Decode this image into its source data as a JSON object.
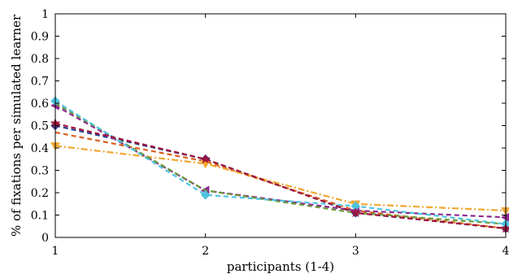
{
  "chart_data": {
    "type": "line",
    "title": "",
    "xlabel": "participants  (1-4)",
    "ylabel": "% of fixations per simulated learner",
    "x": [
      1,
      2,
      3,
      4
    ],
    "xlim": [
      1,
      4
    ],
    "ylim": [
      0,
      1
    ],
    "xticks": [
      "1",
      "2",
      "3",
      "4"
    ],
    "yticks": [
      "0",
      "0.1",
      "0.2",
      "0.3",
      "0.4",
      "0.5",
      "0.6",
      "0.7",
      "0.8",
      "0.9",
      "1"
    ],
    "grid": false,
    "legend": "none",
    "series": [
      {
        "values": [
          0.5,
          0.35,
          0.11,
          0.04
        ],
        "color": "#2e3d8f",
        "marker": "diamond",
        "dash": "dashed"
      },
      {
        "values": [
          0.47,
          0.34,
          0.12,
          0.04
        ],
        "color": "#d95f1e",
        "marker": "none",
        "dash": "dashed"
      },
      {
        "values": [
          0.41,
          0.33,
          0.15,
          0.12
        ],
        "color": "#f0a830",
        "marker": "triangle-down",
        "dash": "dashdot"
      },
      {
        "values": [
          0.59,
          0.21,
          0.12,
          0.09
        ],
        "color": "#8b2a8f",
        "marker": "triangle-left",
        "dash": "dashed"
      },
      {
        "values": [
          0.6,
          0.21,
          0.11,
          0.06
        ],
        "color": "#6a9a3a",
        "marker": "none",
        "dash": "dashed"
      },
      {
        "values": [
          0.61,
          0.19,
          0.14,
          0.06
        ],
        "color": "#4fc3e0",
        "marker": "diamond",
        "dash": "dashed"
      },
      {
        "values": [
          0.51,
          0.35,
          0.11,
          0.04
        ],
        "color": "#a0143c",
        "marker": "star",
        "dash": "dashed"
      }
    ]
  }
}
